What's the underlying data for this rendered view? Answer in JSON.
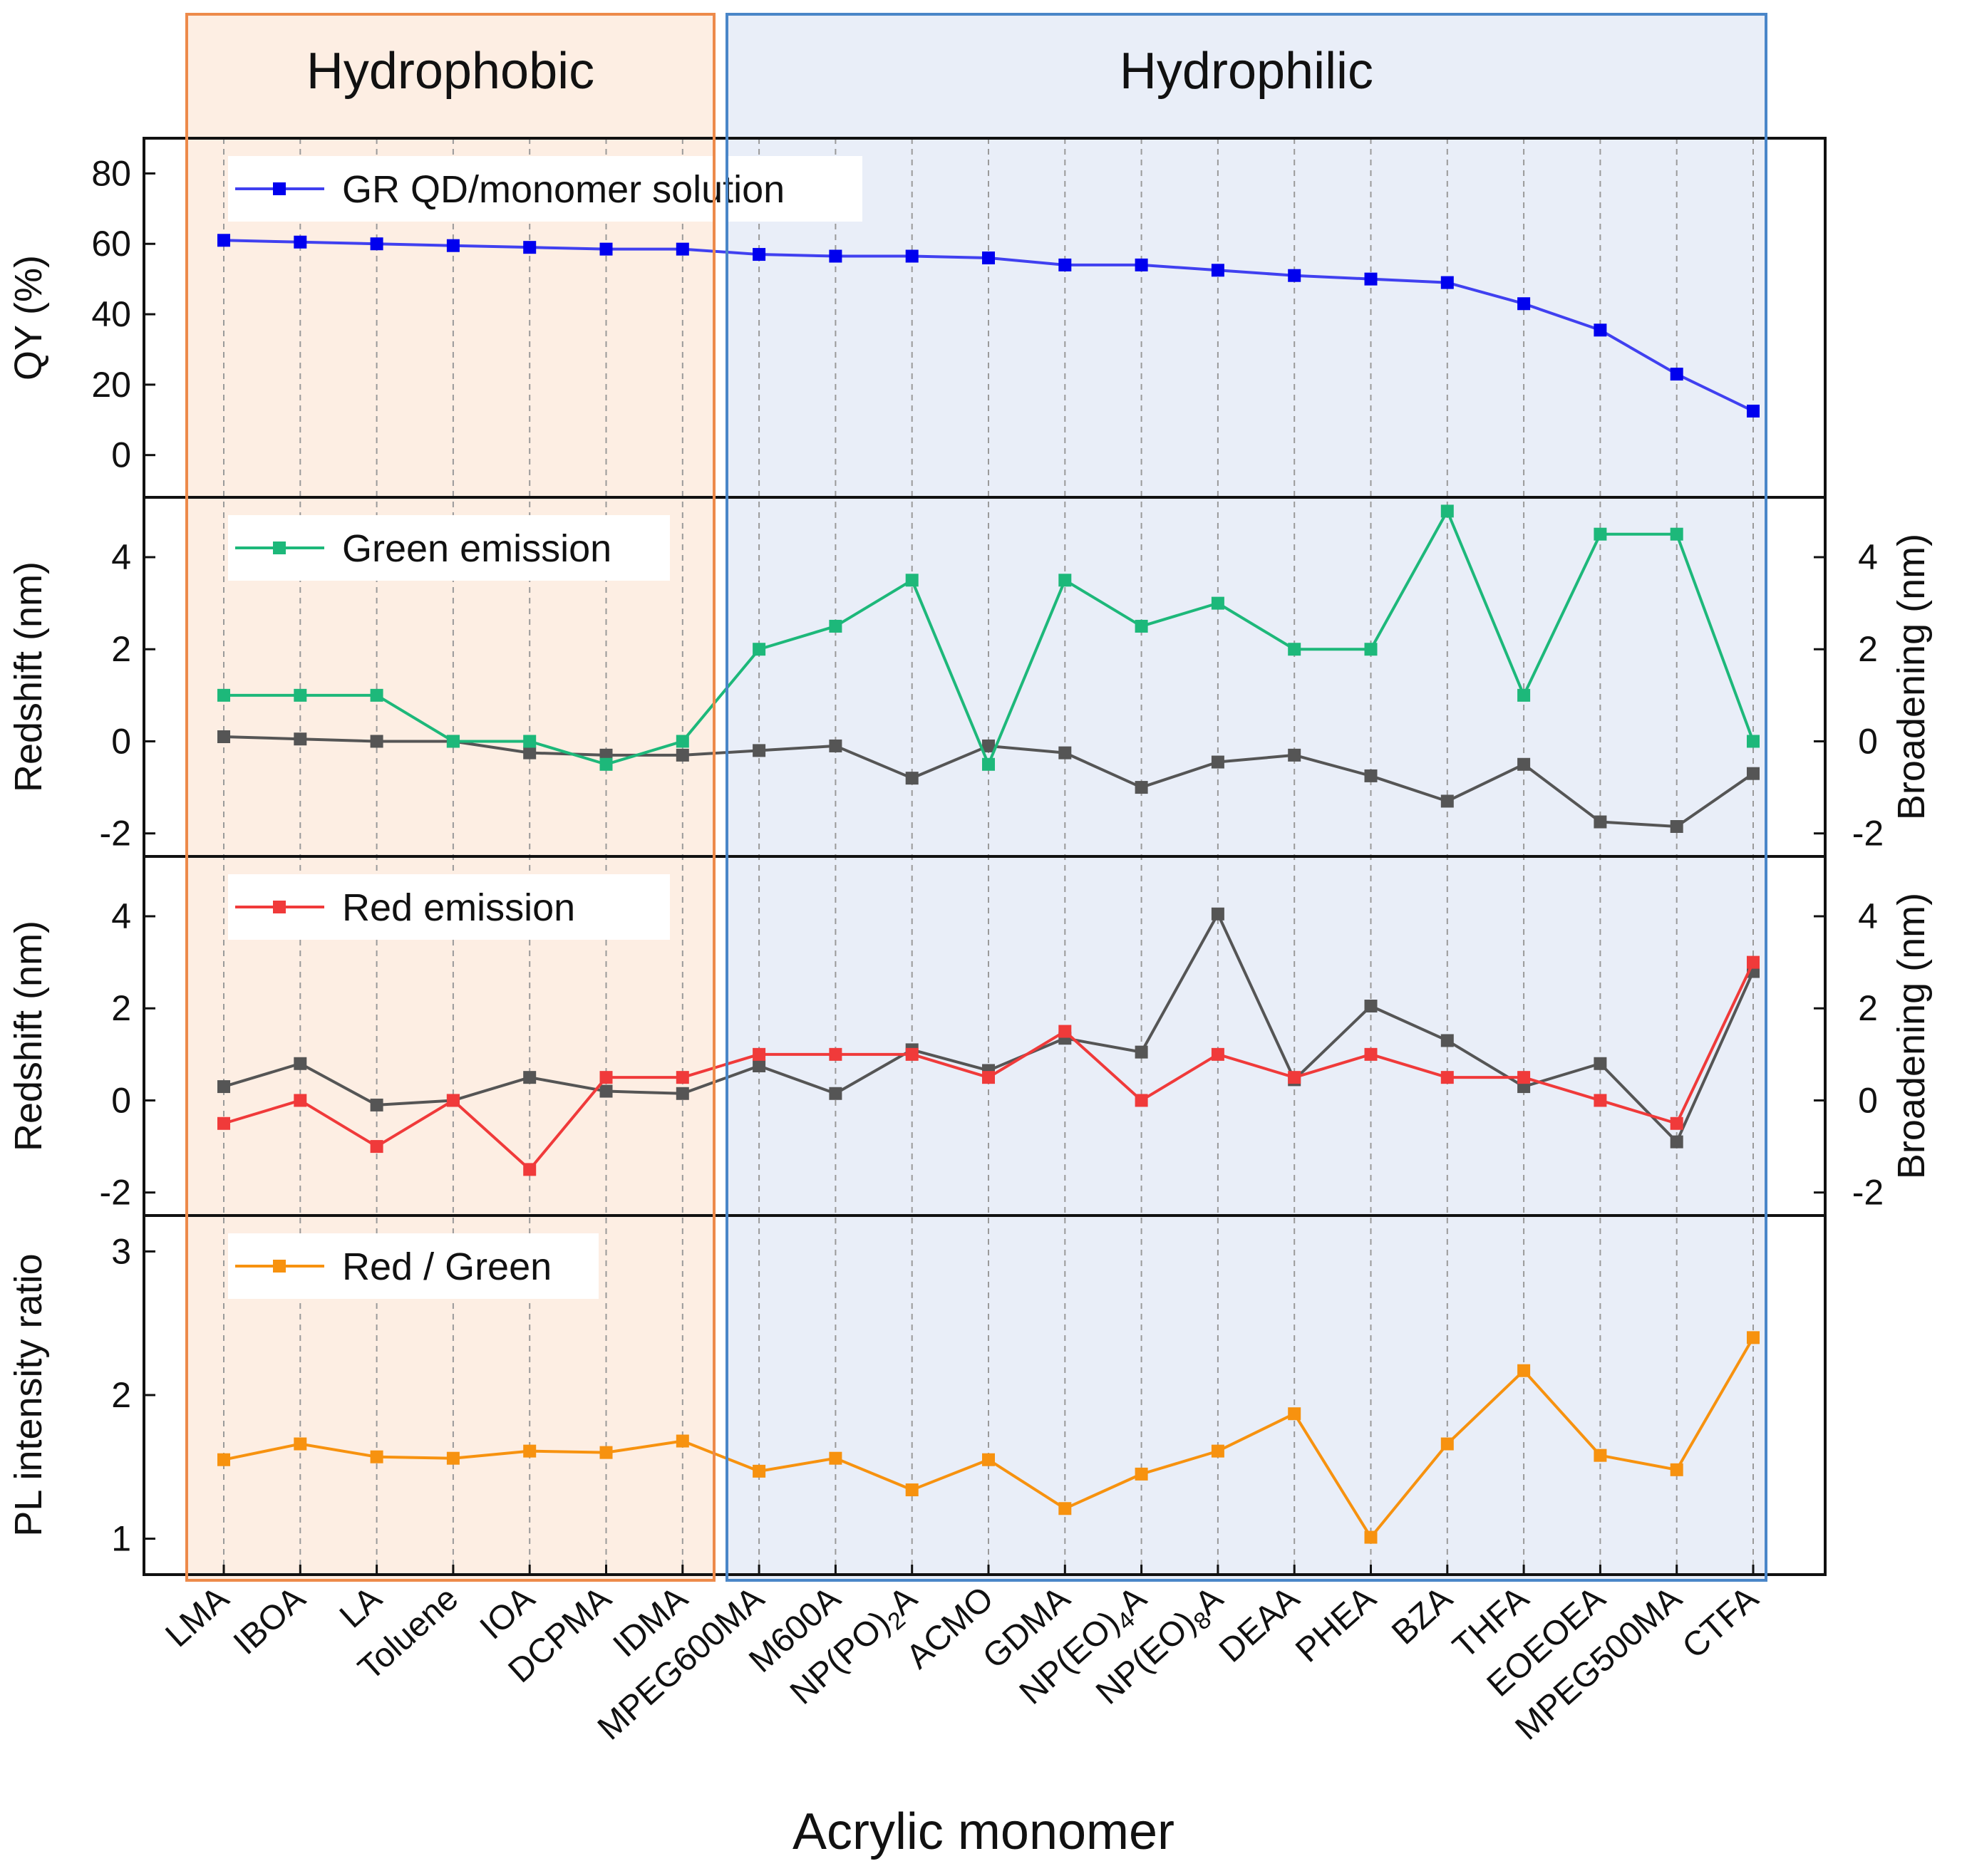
{
  "regions": [
    {
      "label": "Hydrophobic",
      "fill": "#fdeee3",
      "stroke": "#ed8a4a",
      "start": "LMA",
      "end": "IDMA"
    },
    {
      "label": "Hydrophilic",
      "fill": "#e9eef8",
      "stroke": "#4a86c8",
      "start": "MPEG600MA",
      "end": "CTFA"
    }
  ],
  "x_axis_title": "Acrylic monomer",
  "categories": [
    "LMA",
    "IBOA",
    "LA",
    "Toluene",
    "IOA",
    "DCPMA",
    "IDMA",
    "MPEG600MA",
    "M600A",
    "NP(PO)2A",
    "ACMO",
    "GDMA",
    "NP(EO)4A",
    "NP(EO)8A",
    "DEAA",
    "PHEA",
    "BZA",
    "THFA",
    "EOEOEA",
    "MPEG500MA",
    "CTFA"
  ],
  "category_display": [
    {
      "text": "LMA"
    },
    {
      "text": "IBOA"
    },
    {
      "text": "LA"
    },
    {
      "text": "Toluene"
    },
    {
      "text": "IOA"
    },
    {
      "text": "DCPMA"
    },
    {
      "text": "IDMA"
    },
    {
      "text": "MPEG600MA"
    },
    {
      "text": "M600A"
    },
    {
      "text": "NP(PO)",
      "sub": "2",
      "post": "A"
    },
    {
      "text": "ACMO"
    },
    {
      "text": "GDMA"
    },
    {
      "text": "NP(EO)",
      "sub": "4",
      "post": "A"
    },
    {
      "text": "NP(EO)",
      "sub": "8",
      "post": "A"
    },
    {
      "text": "DEAA"
    },
    {
      "text": "PHEA"
    },
    {
      "text": "BZA"
    },
    {
      "text": "THFA"
    },
    {
      "text": "EOEOEA"
    },
    {
      "text": "MPEG500MA"
    },
    {
      "text": "CTFA"
    }
  ],
  "chart_data": [
    {
      "type": "line",
      "panel": "qy",
      "ylabel": "QY (%)",
      "ylim": [
        -12,
        90
      ],
      "yticks": [
        0,
        20,
        40,
        60,
        80
      ],
      "legend": "GR QD/monomer solution",
      "series": [
        {
          "name": "GR QD/monomer solution",
          "color": "#4040f0",
          "marker_color": "#0000ee",
          "values": [
            61,
            60.5,
            60,
            59.5,
            59,
            58.5,
            58.5,
            57,
            56.5,
            56.5,
            56,
            54,
            54,
            52.5,
            51,
            50,
            49,
            43,
            35.5,
            23,
            12.5
          ]
        }
      ]
    },
    {
      "type": "line",
      "panel": "green",
      "ylabel": "Redshift (nm)",
      "ylabel_right": "Broadening (nm)",
      "ylim": [
        -2.5,
        5.3
      ],
      "yticks": [
        -2,
        0,
        2,
        4
      ],
      "legend": "Green emission",
      "series": [
        {
          "name": "Green emission redshift",
          "color": "#1db87a",
          "values": [
            1,
            1,
            1,
            0,
            0,
            -0.5,
            0,
            2,
            2.5,
            3.5,
            -0.5,
            3.5,
            2.5,
            3,
            2,
            2,
            5,
            1,
            4.5,
            4.5,
            0
          ]
        },
        {
          "name": "Green emission broadening",
          "color": "#555555",
          "values": [
            0.1,
            0.05,
            0,
            0,
            -0.25,
            -0.3,
            -0.3,
            -0.2,
            -0.1,
            -0.8,
            -0.1,
            -0.25,
            -1,
            -0.45,
            -0.3,
            -0.75,
            -1.3,
            -0.5,
            -1.75,
            -1.85,
            -0.7
          ]
        }
      ]
    },
    {
      "type": "line",
      "panel": "red",
      "ylabel": "Redshift (nm)",
      "ylabel_right": "Broadening (nm)",
      "ylim": [
        -2.5,
        5.3
      ],
      "yticks": [
        -2,
        0,
        2,
        4
      ],
      "legend": "Red emission",
      "series": [
        {
          "name": "Red emission redshift",
          "color": "#f03a3a",
          "values": [
            -0.5,
            0,
            -1,
            0,
            -1.5,
            0.5,
            0.5,
            1,
            1,
            1,
            0.5,
            1.5,
            0,
            1,
            0.5,
            1,
            0.5,
            0.5,
            0,
            -0.5,
            3
          ]
        },
        {
          "name": "Red emission broadening",
          "color": "#555555",
          "values": [
            0.3,
            0.8,
            -0.1,
            0,
            0.5,
            0.2,
            0.15,
            0.75,
            0.15,
            1.1,
            0.65,
            1.35,
            1.05,
            4.05,
            0.45,
            2.05,
            1.3,
            0.3,
            0.8,
            -0.9,
            2.8
          ]
        }
      ]
    },
    {
      "type": "line",
      "panel": "ratio",
      "ylabel": "PL intensity ratio",
      "ylim": [
        0.75,
        3.25
      ],
      "yticks": [
        1,
        2,
        3
      ],
      "legend": "Red / Green",
      "series": [
        {
          "name": "Red / Green",
          "color": "#f7920f",
          "values": [
            1.55,
            1.66,
            1.57,
            1.56,
            1.61,
            1.6,
            1.68,
            1.47,
            1.56,
            1.34,
            1.55,
            1.21,
            1.45,
            1.61,
            1.87,
            1.01,
            1.66,
            2.17,
            1.58,
            1.48,
            2.4
          ]
        }
      ]
    }
  ]
}
